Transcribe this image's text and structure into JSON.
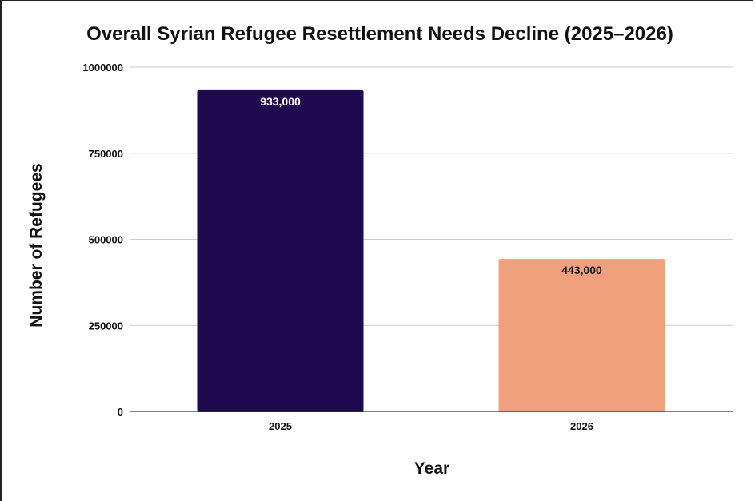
{
  "chart_data": {
    "type": "bar",
    "title": "Overall Syrian Refugee Resettlement Needs Decline (2025–2026)",
    "xlabel": "Year",
    "ylabel": "Number of Refugees",
    "categories": [
      "2025",
      "2026"
    ],
    "values": [
      933000,
      443000
    ],
    "data_labels": [
      "933,000",
      "443,000"
    ],
    "ylim": [
      0,
      1000000
    ],
    "yticks": [
      0,
      250000,
      500000,
      750000,
      1000000
    ],
    "ytick_labels": [
      "0",
      "250000",
      "500000",
      "750000",
      "1000000"
    ],
    "bar_colors": [
      "#1f0a4f",
      "#f0a07d"
    ],
    "label_colors": [
      "#ffffff",
      "#111111"
    ],
    "grid": true,
    "legend": "none"
  }
}
